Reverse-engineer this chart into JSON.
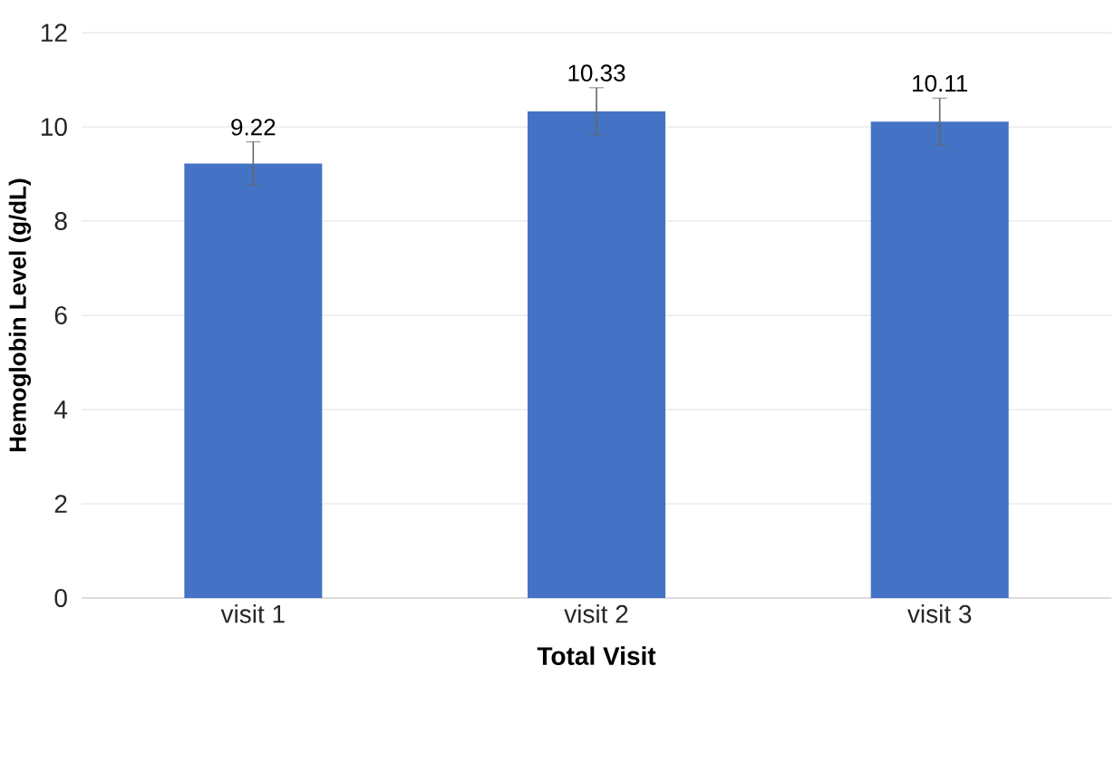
{
  "chart_data": {
    "type": "bar",
    "xlabel": "Total Visit",
    "ylabel": "Hemoglobin Level (g/dL)",
    "categories": [
      "visit 1",
      "visit 2",
      "visit 3"
    ],
    "values": [
      9.22,
      10.33,
      10.11
    ],
    "errors": [
      0.46,
      0.5,
      0.5
    ],
    "color": "#4472c4",
    "value_labels": [
      "9.22",
      "10.33",
      "10.11"
    ],
    "ylim": [
      0,
      12
    ],
    "yticks": [
      0,
      2,
      4,
      6,
      8,
      10,
      12
    ],
    "grid": "y"
  }
}
